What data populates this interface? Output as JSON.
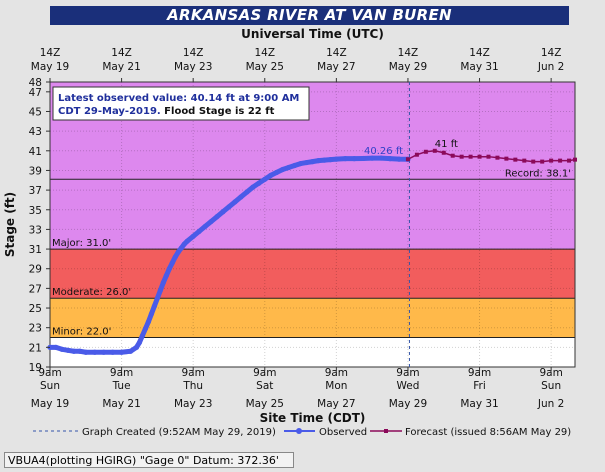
{
  "title": "ARKANSAS RIVER AT VAN BUREN",
  "colors": {
    "title_bg": "#1a2f7a",
    "major_band": "#dd88ee",
    "record_band": "#dd88ee",
    "flood_band": "#f25d5d",
    "moderate_band": "#f25d5d",
    "minor_band": "#ffb94a",
    "normal_band": "#ffffff",
    "observed": "#4a5be8",
    "forecast": "#8b0a5a",
    "graph_created": "#3355aa"
  },
  "chart_data": {
    "type": "line",
    "title": "ARKANSAS RIVER AT VAN BUREN",
    "top_axis_label": "Universal Time (UTC)",
    "xlabel": "Site Time (CDT)",
    "ylabel": "Stage (ft)",
    "ylim": [
      19,
      48
    ],
    "xlim": [
      0,
      352
    ],
    "x_unit": "hours after 9am CDT May 19",
    "yticks": [
      19,
      21,
      23,
      25,
      27,
      29,
      31,
      33,
      35,
      37,
      39,
      41,
      43,
      45,
      47,
      48
    ],
    "top_ticks": [
      {
        "x": 0,
        "line1": "14Z",
        "line2": "May 19"
      },
      {
        "x": 48,
        "line1": "14Z",
        "line2": "May 21"
      },
      {
        "x": 96,
        "line1": "14Z",
        "line2": "May 23"
      },
      {
        "x": 144,
        "line1": "14Z",
        "line2": "May 25"
      },
      {
        "x": 192,
        "line1": "14Z",
        "line2": "May 27"
      },
      {
        "x": 240,
        "line1": "14Z",
        "line2": "May 29"
      },
      {
        "x": 288,
        "line1": "14Z",
        "line2": "May 31"
      },
      {
        "x": 336,
        "line1": "14Z",
        "line2": "Jun 2"
      }
    ],
    "bottom_ticks": [
      {
        "x": 0,
        "line1": "9am",
        "line2": "Sun",
        "line3": "May 19"
      },
      {
        "x": 48,
        "line1": "9am",
        "line2": "Tue",
        "line3": "May 21"
      },
      {
        "x": 96,
        "line1": "9am",
        "line2": "Thu",
        "line3": "May 23"
      },
      {
        "x": 144,
        "line1": "9am",
        "line2": "Sat",
        "line3": "May 25"
      },
      {
        "x": 192,
        "line1": "9am",
        "line2": "Mon",
        "line3": "May 27"
      },
      {
        "x": 240,
        "line1": "9am",
        "line2": "Wed",
        "line3": "May 29"
      },
      {
        "x": 288,
        "line1": "9am",
        "line2": "Fri",
        "line3": "May 31"
      },
      {
        "x": 336,
        "line1": "9am",
        "line2": "Sun",
        "line3": "Jun 2"
      }
    ],
    "thresholds": [
      {
        "name": "Record",
        "value": 38.1,
        "label": "Record: 38.1'"
      },
      {
        "name": "Major",
        "value": 31.0,
        "label": "Major: 31.0'"
      },
      {
        "name": "Moderate",
        "value": 26.0,
        "label": "Moderate: 26.0'"
      },
      {
        "name": "Minor",
        "value": 22.0,
        "label": "Minor: 22.0'"
      }
    ],
    "graph_created_x": 241,
    "observed": {
      "name": "Observed",
      "x": [
        0,
        4,
        8,
        12,
        16,
        20,
        24,
        30,
        36,
        42,
        48,
        54,
        58,
        60,
        62,
        64,
        66,
        68,
        70,
        72,
        74,
        76,
        78,
        80,
        82,
        84,
        86,
        88,
        90,
        92,
        96,
        100,
        104,
        108,
        112,
        116,
        120,
        124,
        128,
        132,
        136,
        140,
        144,
        148,
        152,
        156,
        160,
        164,
        168,
        172,
        176,
        180,
        184,
        188,
        192,
        198,
        204,
        210,
        216,
        222,
        228,
        234,
        240
      ],
      "y": [
        21.0,
        21.0,
        20.8,
        20.7,
        20.6,
        20.6,
        20.5,
        20.5,
        20.5,
        20.5,
        20.5,
        20.6,
        21.0,
        21.5,
        22.2,
        22.9,
        23.6,
        24.4,
        25.2,
        26.0,
        26.8,
        27.6,
        28.3,
        29.0,
        29.6,
        30.2,
        30.7,
        31.1,
        31.5,
        31.8,
        32.3,
        32.8,
        33.3,
        33.8,
        34.3,
        34.8,
        35.3,
        35.8,
        36.3,
        36.8,
        37.3,
        37.7,
        38.1,
        38.5,
        38.8,
        39.1,
        39.3,
        39.5,
        39.7,
        39.8,
        39.9,
        40.0,
        40.05,
        40.1,
        40.15,
        40.2,
        40.2,
        40.22,
        40.25,
        40.26,
        40.2,
        40.15,
        40.14
      ]
    },
    "forecast": {
      "name": "Forecast (issued 8:56AM May 29)",
      "x": [
        240,
        246,
        252,
        258,
        264,
        270,
        276,
        282,
        288,
        294,
        300,
        306,
        312,
        318,
        324,
        330,
        336,
        342,
        348,
        352
      ],
      "y": [
        40.14,
        40.6,
        40.9,
        41.0,
        40.8,
        40.5,
        40.4,
        40.4,
        40.4,
        40.4,
        40.3,
        40.2,
        40.1,
        40.0,
        39.9,
        39.9,
        40.0,
        40.0,
        40.0,
        40.1
      ]
    },
    "data_labels": [
      {
        "text": "40.26 ft",
        "x": 225,
        "y": 40.26
      },
      {
        "text": "41 ft",
        "x": 258,
        "y": 41.0
      }
    ],
    "legend": {
      "placement": "bottom",
      "graph_created": "Graph Created (9:52AM May 29, 2019)",
      "observed": "Observed",
      "forecast": "Forecast (issued 8:56AM May 29)"
    },
    "info_box": {
      "line1": "Latest observed value: 40.14 ft at 9:00 AM",
      "line2_a": "CDT 29-May-2019.",
      "line2_b": " Flood Stage is 22 ft"
    }
  },
  "footer": "VBUA4(plotting HGIRG) \"Gage 0\" Datum: 372.36'"
}
